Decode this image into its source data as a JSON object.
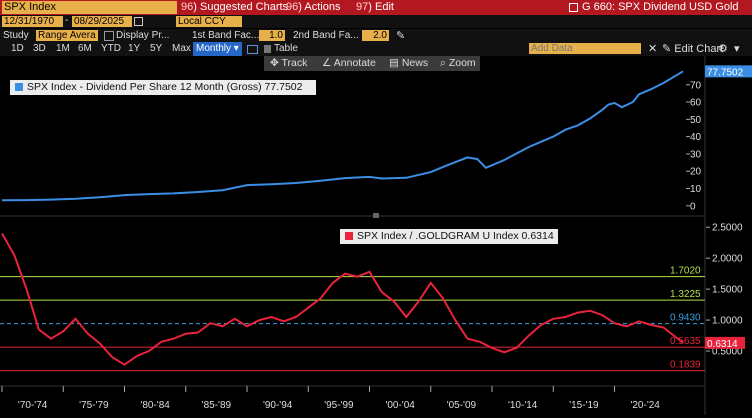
{
  "topbar": {
    "ticker": "SPX Index",
    "menu": [
      {
        "num": "96",
        "label": "Suggested Charts"
      },
      {
        "num": "96",
        "label": "Actions"
      },
      {
        "num": "97",
        "label": "Edit"
      }
    ],
    "title": "G 660: SPX Dividend USD Gold"
  },
  "daterow": {
    "start": "12/31/1970",
    "end": "08/29/2025",
    "currency": "Local CCY"
  },
  "studyrow": {
    "study_label": "Study",
    "study_value": "Range Avera",
    "display_label": "Display Pr...",
    "band1_label": "1st Band Fac...",
    "band1_value": "1.0",
    "band2_label": "2nd Band Fa...",
    "band2_value": "2.0"
  },
  "rangerow": {
    "ranges": [
      "1D",
      "3D",
      "1M",
      "6M",
      "YTD",
      "1Y",
      "5Y",
      "Max"
    ],
    "period": "Monthly",
    "table_label": "Table",
    "add_data_placeholder": "Add Data",
    "edit_chart": "Edit Chart"
  },
  "toolbar": [
    "Track",
    "Annotate",
    "News",
    "Zoom"
  ],
  "colors": {
    "series1": "#3a8ee6",
    "series2": "#e8233b",
    "lvl1": "#b5e14a",
    "mean": "#3aa0e6"
  },
  "chart_data": [
    {
      "type": "line",
      "legend": "SPX Index - Dividend Per Share 12 Month (Gross) 77.7502",
      "last_value_tag": "77.7502",
      "yticks": [
        "70",
        "60",
        "50",
        "40",
        "30",
        "20",
        "10",
        "0"
      ],
      "ylim": [
        -3,
        82
      ],
      "x": [
        1970.0,
        1972,
        1974,
        1976,
        1978,
        1980,
        1982,
        1984,
        1986,
        1988,
        1990,
        1992,
        1994,
        1996,
        1998,
        2000,
        2001,
        2003,
        2005,
        2006,
        2008,
        2008.8,
        2009.5,
        2011,
        2013,
        2015,
        2016,
        2017,
        2018,
        2019,
        2019.5,
        2020,
        2020.6,
        2021.5,
        2022,
        2023,
        2024,
        2025.6
      ],
      "values": [
        3.2,
        3.3,
        3.6,
        4.1,
        5.0,
        6.2,
        6.8,
        7.2,
        8.0,
        9.0,
        12.0,
        12.5,
        13.2,
        14.5,
        16.0,
        16.7,
        15.8,
        16.2,
        19.5,
        22.5,
        28.0,
        27.0,
        22.0,
        26.5,
        34.0,
        40.0,
        44.0,
        46.5,
        50.5,
        55.5,
        58.5,
        59.5,
        57.0,
        60.0,
        64.5,
        67.5,
        71.0,
        77.75
      ]
    },
    {
      "type": "line",
      "legend": "SPX Index / .GOLDGRAM U Index 0.6314",
      "last_value_tag": "0.6314",
      "yticks": [
        "2.5000",
        "2.0000",
        "1.5000",
        "1.0000",
        "0.5000"
      ],
      "ylim": [
        0,
        2.6
      ],
      "levels": [
        {
          "label": "1.7020",
          "value": 1.702
        },
        {
          "label": "1.3225",
          "value": 1.3225
        },
        {
          "label": "0.9430",
          "value": 0.943
        },
        {
          "label": "0.5635",
          "value": 0.5635
        },
        {
          "label": "0.1839",
          "value": 0.1839
        }
      ],
      "x": [
        1970.0,
        1971,
        1972,
        1973,
        1974,
        1975,
        1976,
        1977,
        1978,
        1979,
        1980,
        1981,
        1982,
        1983,
        1984,
        1985,
        1986,
        1987,
        1988,
        1989,
        1990,
        1991,
        1992,
        1993,
        1994,
        1995,
        1996,
        1997,
        1998,
        1999,
        2000,
        2001,
        2002,
        2003,
        2004,
        2005,
        2006,
        2007,
        2008,
        2009,
        2010,
        2011,
        2012,
        2013,
        2014,
        2015,
        2016,
        2017,
        2018,
        2019,
        2020,
        2021,
        2022,
        2023,
        2024,
        2025.6
      ],
      "values": [
        2.4,
        2.05,
        1.5,
        0.85,
        0.7,
        0.82,
        1.02,
        0.78,
        0.62,
        0.4,
        0.28,
        0.42,
        0.5,
        0.65,
        0.7,
        0.78,
        0.8,
        0.95,
        0.9,
        1.02,
        0.9,
        1.0,
        1.05,
        0.98,
        1.05,
        1.2,
        1.35,
        1.6,
        1.75,
        1.7,
        1.78,
        1.45,
        1.3,
        1.05,
        1.3,
        1.6,
        1.35,
        1.0,
        0.7,
        0.65,
        0.55,
        0.48,
        0.55,
        0.75,
        0.92,
        1.02,
        1.05,
        1.12,
        1.15,
        1.08,
        0.95,
        0.9,
        0.98,
        0.92,
        0.88,
        0.6314
      ]
    }
  ],
  "xticks": [
    "'70-'74",
    "'75-'79",
    "'80-'84",
    "'85-'89",
    "'90-'94",
    "'95-'99",
    "'00-'04",
    "'05-'09",
    "'10-'14",
    "'15-'19",
    "'20-'24"
  ]
}
